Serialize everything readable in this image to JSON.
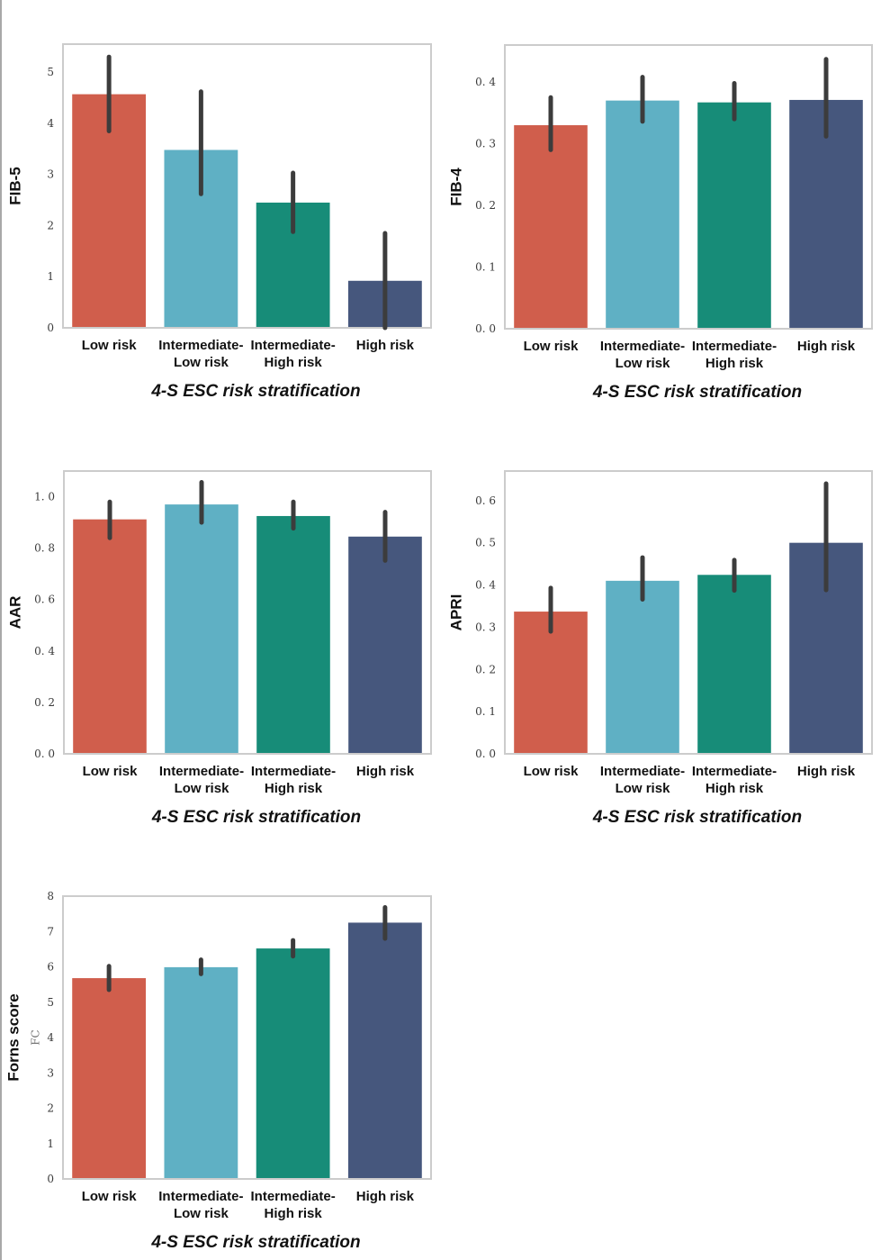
{
  "colors": {
    "low": "#D05E4C",
    "intermediate_low": "#5FB0C4",
    "intermediate_high": "#178C78",
    "high": "#46577D",
    "errorbar": "#3c3c3c",
    "frame": "#cccccc"
  },
  "chart_data": [
    {
      "type": "bar",
      "title": "",
      "xlabel": "4-S ESC risk stratification",
      "ylabel": "FIB-5",
      "categories": [
        [
          "Low risk"
        ],
        [
          "Intermediate-",
          "Low risk"
        ],
        [
          "Intermediate-",
          "High risk"
        ],
        [
          "High risk"
        ]
      ],
      "values": [
        4.57,
        3.48,
        2.45,
        0.92
      ],
      "ci_low": [
        3.85,
        2.62,
        1.88,
        0.0
      ],
      "ci_high": [
        5.3,
        4.62,
        3.03,
        1.85
      ],
      "yticks": [
        "0",
        "1",
        "2",
        "3",
        "4",
        "5"
      ],
      "ytick_values": [
        0,
        1,
        2,
        3,
        4,
        5
      ],
      "ylim": [
        0,
        5.55
      ],
      "grid": false,
      "extra_text": ""
    },
    {
      "type": "bar",
      "title": "",
      "xlabel": "4-S ESC risk stratification",
      "ylabel": "FIB-4",
      "categories": [
        [
          "Low risk"
        ],
        [
          "Intermediate-",
          "Low risk"
        ],
        [
          "Intermediate-",
          "High risk"
        ],
        [
          "High risk"
        ]
      ],
      "values": [
        0.33,
        0.37,
        0.367,
        0.371
      ],
      "ci_low": [
        0.29,
        0.336,
        0.34,
        0.312
      ],
      "ci_high": [
        0.375,
        0.408,
        0.398,
        0.437
      ],
      "yticks": [
        "0. 0",
        "0. 1",
        "0. 2",
        "0. 3",
        "0. 4"
      ],
      "ytick_values": [
        0,
        0.1,
        0.2,
        0.3,
        0.4
      ],
      "ylim": [
        0,
        0.46
      ],
      "grid": false,
      "extra_text": ""
    },
    {
      "type": "bar",
      "title": "",
      "xlabel": "4-S ESC risk stratification",
      "ylabel": "AAR",
      "categories": [
        [
          "Low risk"
        ],
        [
          "Intermediate-",
          "Low risk"
        ],
        [
          "Intermediate-",
          "High risk"
        ],
        [
          "High risk"
        ]
      ],
      "values": [
        0.912,
        0.97,
        0.925,
        0.845
      ],
      "ci_low": [
        0.84,
        0.9,
        0.877,
        0.752
      ],
      "ci_high": [
        0.98,
        1.056,
        0.98,
        0.94
      ],
      "yticks": [
        "0. 0",
        "0. 2",
        "0. 4",
        "0. 6",
        "0. 8",
        "1. 0"
      ],
      "ytick_values": [
        0,
        0.2,
        0.4,
        0.6,
        0.8,
        1.0
      ],
      "ylim": [
        0,
        1.1
      ],
      "grid": false,
      "extra_text": ""
    },
    {
      "type": "bar",
      "title": "",
      "xlabel": "4-S ESC risk stratification",
      "ylabel": "APRI",
      "categories": [
        [
          "Low risk"
        ],
        [
          "Intermediate-",
          "Low risk"
        ],
        [
          "Intermediate-",
          "High risk"
        ],
        [
          "High risk"
        ]
      ],
      "values": [
        0.337,
        0.41,
        0.424,
        0.5
      ],
      "ci_low": [
        0.29,
        0.366,
        0.387,
        0.388
      ],
      "ci_high": [
        0.393,
        0.465,
        0.459,
        0.64
      ],
      "yticks": [
        "0. 0",
        "0. 1",
        "0. 2",
        "0. 3",
        "0. 4",
        "0. 5",
        "0. 6"
      ],
      "ytick_values": [
        0,
        0.1,
        0.2,
        0.3,
        0.4,
        0.5,
        0.6
      ],
      "ylim": [
        0,
        0.67
      ],
      "grid": false,
      "extra_text": ""
    },
    {
      "type": "bar",
      "title": "",
      "xlabel": "4-S ESC risk stratification",
      "ylabel": "Forns score",
      "categories": [
        [
          "Low risk"
        ],
        [
          "Intermediate-",
          "Low risk"
        ],
        [
          "Intermediate-",
          "High risk"
        ],
        [
          "High risk"
        ]
      ],
      "values": [
        5.68,
        5.99,
        6.52,
        7.25
      ],
      "ci_low": [
        5.35,
        5.8,
        6.3,
        6.8
      ],
      "ci_high": [
        6.02,
        6.2,
        6.75,
        7.68
      ],
      "yticks": [
        "0",
        "1",
        "2",
        "3",
        "4",
        "5",
        "6",
        "7",
        "8"
      ],
      "ytick_values": [
        0,
        1,
        2,
        3,
        4,
        5,
        6,
        7,
        8
      ],
      "ylim": [
        0,
        8
      ],
      "grid": false,
      "extra_text": "FC"
    }
  ]
}
